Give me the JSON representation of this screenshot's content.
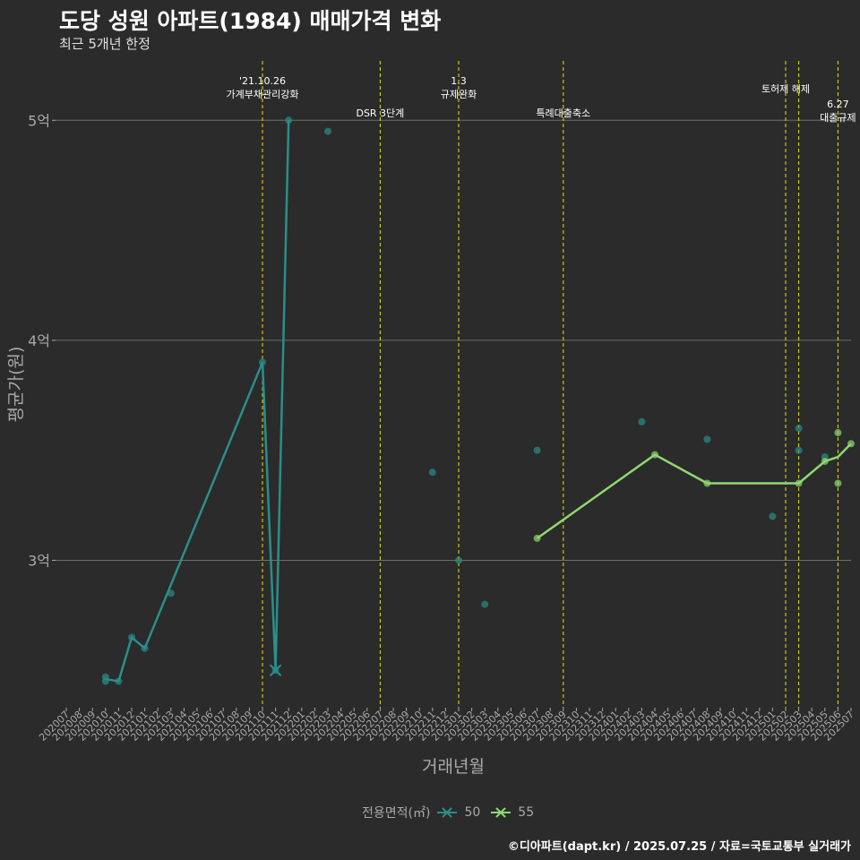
{
  "title": "도당 성원 아파트(1984) 매매가격 변화",
  "subtitle": "최근 5개년 한정",
  "footer": "©디아파트(dapt.kr) / 2025.07.25 / 자료=국토교통부 실거래가",
  "colors": {
    "background": "#2b2b2b",
    "gridline": "#6e6e6e",
    "event_line": "#e5e500",
    "axis_text": "#a9a9a9",
    "series_50": "#2a8f8a",
    "series_55": "#8fd872"
  },
  "chart_data": {
    "type": "line",
    "xlabel": "거래년월",
    "ylabel": "평균가(원)",
    "ylim": [
      2.33,
      5.27
    ],
    "y_ticks": [
      {
        "value": 3,
        "label": "3억"
      },
      {
        "value": 4,
        "label": "4억"
      },
      {
        "value": 5,
        "label": "5억"
      }
    ],
    "x_categories": [
      "202007",
      "202008",
      "202009",
      "202010",
      "202011",
      "202012",
      "202101",
      "202102",
      "202103",
      "202104",
      "202105",
      "202106",
      "202107",
      "202108",
      "202109",
      "202110",
      "202111",
      "202112",
      "202201",
      "202202",
      "202203",
      "202204",
      "202205",
      "202206",
      "202207",
      "202208",
      "202209",
      "202210",
      "202211",
      "202212",
      "202301",
      "202302",
      "202303",
      "202304",
      "202305",
      "202306",
      "202307",
      "202308",
      "202309",
      "202310",
      "202311",
      "202312",
      "202401",
      "202402",
      "202403",
      "202404",
      "202405",
      "202406",
      "202407",
      "202408",
      "202409",
      "202410",
      "202411",
      "202412",
      "202501",
      "202502",
      "202503",
      "202504",
      "202505",
      "202506",
      "202507"
    ],
    "legend_title": "전용면적(㎡)",
    "grid": true,
    "legend_position": "bottom",
    "series": [
      {
        "name": "50",
        "line": [
          [
            "202010",
            2.46
          ],
          [
            "202011",
            2.45
          ],
          [
            "202012",
            2.65
          ],
          [
            "202101",
            2.6
          ],
          [
            "202110",
            3.9
          ],
          [
            "202111",
            2.5
          ],
          [
            "202112",
            5.0
          ]
        ],
        "points": [
          [
            "202010",
            2.45
          ],
          [
            "202010",
            2.47
          ],
          [
            "202011",
            2.45
          ],
          [
            "202012",
            2.65
          ],
          [
            "202101",
            2.6
          ],
          [
            "202103",
            2.85
          ],
          [
            "202110",
            3.9
          ],
          [
            "202111",
            2.5
          ],
          [
            "202112",
            5.0
          ],
          [
            "202203",
            4.95
          ],
          [
            "202211",
            3.4
          ],
          [
            "202301",
            3.0
          ],
          [
            "202303",
            2.8
          ],
          [
            "202307",
            3.5
          ],
          [
            "202403",
            3.63
          ],
          [
            "202408",
            3.55
          ],
          [
            "202501",
            3.2
          ],
          [
            "202503",
            3.6
          ],
          [
            "202503",
            3.5
          ],
          [
            "202505",
            3.47
          ]
        ]
      },
      {
        "name": "55",
        "line": [
          [
            "202307",
            3.1
          ],
          [
            "202404",
            3.48
          ],
          [
            "202408",
            3.35
          ],
          [
            "202503",
            3.35
          ],
          [
            "202505",
            3.45
          ],
          [
            "202506",
            3.47
          ],
          [
            "202507",
            3.53
          ]
        ],
        "points": [
          [
            "202307",
            3.1
          ],
          [
            "202404",
            3.48
          ],
          [
            "202408",
            3.35
          ],
          [
            "202503",
            3.35
          ],
          [
            "202505",
            3.45
          ],
          [
            "202506",
            3.58
          ],
          [
            "202506",
            3.35
          ],
          [
            "202507",
            3.53
          ]
        ]
      }
    ],
    "events": [
      {
        "month": "202110",
        "lines": [
          "'21.10.26",
          "가계부채관리강화"
        ],
        "level": 1
      },
      {
        "month": "202207",
        "lines": [
          "DSR 3단계"
        ],
        "level": 2
      },
      {
        "month": "202301",
        "lines": [
          "1.3",
          "규제완화"
        ],
        "level": 1
      },
      {
        "month": "202309",
        "lines": [
          "특례대출축소"
        ],
        "level": 2
      },
      {
        "month": "202502",
        "lines": [
          "토허제 해제"
        ],
        "level": 0
      },
      {
        "month": "202503",
        "lines": [],
        "level": 0
      },
      {
        "month": "202506",
        "lines": [
          "6.27",
          "대출규제"
        ],
        "level": 2
      }
    ]
  }
}
